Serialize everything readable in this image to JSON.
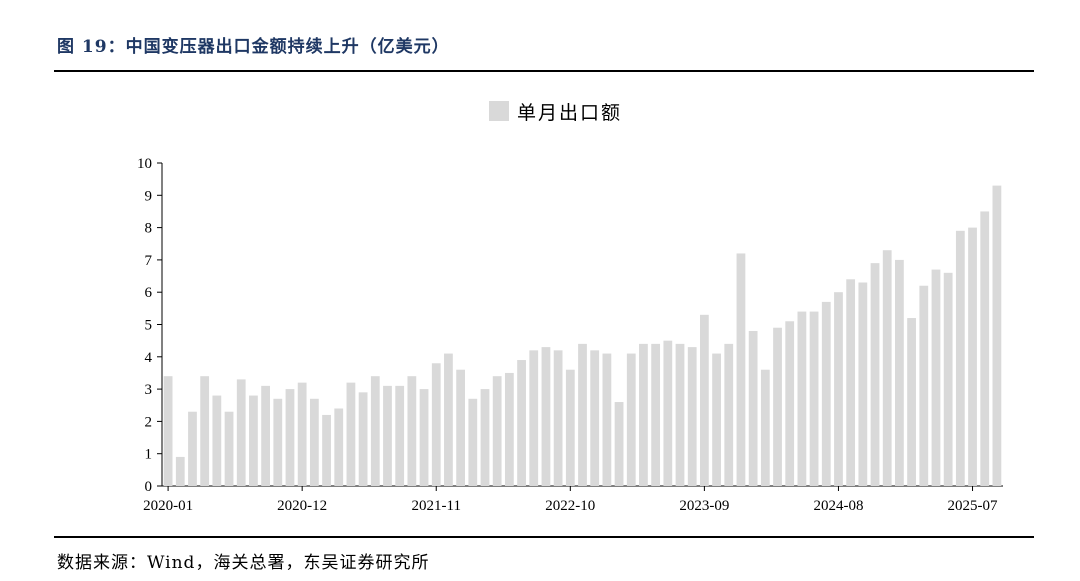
{
  "header": {
    "title": "图 19：中国变压器出口金额持续上升（亿美元）"
  },
  "footer": {
    "source": "数据来源：Wind，海关总署，东吴证券研究所"
  },
  "chart_data": {
    "type": "bar",
    "title": "图 19：中国变压器出口金额持续上升（亿美元）",
    "xlabel": "",
    "ylabel": "",
    "ylim": [
      0,
      10
    ],
    "yticks": [
      "0",
      "1",
      "2",
      "3",
      "4",
      "5",
      "6",
      "7",
      "8",
      "9",
      "10"
    ],
    "legend_position": "top-center",
    "bar_color": "#d9d9d9",
    "grid": false,
    "x_tick_labels": [
      {
        "index": 0,
        "label": "2020-01"
      },
      {
        "index": 11,
        "label": "2020-12"
      },
      {
        "index": 22,
        "label": "2021-11"
      },
      {
        "index": 33,
        "label": "2022-10"
      },
      {
        "index": 44,
        "label": "2023-09"
      },
      {
        "index": 55,
        "label": "2024-08"
      },
      {
        "index": 66,
        "label": "2025-07"
      }
    ],
    "series": [
      {
        "name": "单月出口额",
        "values": [
          3.4,
          0.9,
          2.3,
          3.4,
          2.8,
          2.3,
          3.3,
          2.8,
          3.1,
          2.7,
          3.0,
          3.2,
          2.7,
          2.2,
          2.4,
          3.2,
          2.9,
          3.4,
          3.1,
          3.1,
          3.4,
          3.0,
          3.8,
          4.1,
          3.6,
          2.7,
          3.0,
          3.4,
          3.5,
          3.9,
          4.2,
          4.3,
          4.2,
          3.6,
          4.4,
          4.2,
          4.1,
          2.6,
          4.1,
          4.4,
          4.4,
          4.5,
          4.4,
          4.3,
          5.3,
          4.1,
          4.4,
          7.2,
          4.8,
          3.6,
          4.9,
          5.1,
          5.4,
          5.4,
          5.7,
          6.0,
          6.4,
          6.3,
          6.9,
          7.3,
          7.0,
          5.2,
          6.2,
          6.7,
          6.6,
          7.9,
          8.0,
          8.5,
          9.3
        ]
      }
    ]
  }
}
